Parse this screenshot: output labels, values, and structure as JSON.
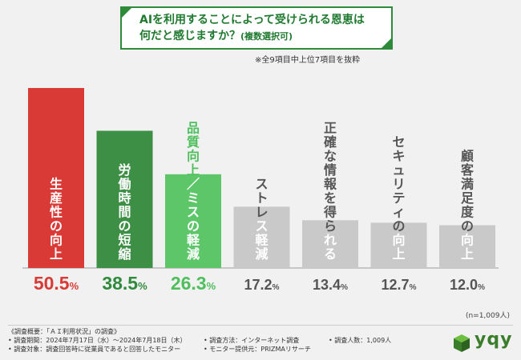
{
  "title": {
    "line1": "AIを利用することによって受けられる恩恵は",
    "line2": "何だと感じますか？",
    "line2_suffix": "(複数選択可)"
  },
  "note": "※全9項目中上位7項目を抜粋",
  "chart_data": {
    "type": "bar",
    "categories": [
      "生産性の向上",
      "労働時間の短縮",
      "品質向上／ミスの軽減",
      "ストレス軽減",
      "正確な情報を得られる",
      "セキュリティの向上",
      "顧客満足度の向上"
    ],
    "values": [
      50.5,
      38.5,
      26.3,
      17.2,
      13.4,
      12.7,
      12.0
    ],
    "value_labels": [
      "50.5%",
      "38.5%",
      "26.3%",
      "17.2%",
      "13.4%",
      "12.7%",
      "12.0%"
    ],
    "unit": "%",
    "ylim": [
      0,
      50.5
    ],
    "colors": [
      "#d93a35",
      "#3c8f45",
      "#5cc669",
      "#c9c9c9",
      "#c9c9c9",
      "#c9c9c9",
      "#c9c9c9"
    ],
    "label_colors": [
      "#d93a35",
      "#2f8a3c",
      "#4fbf5e",
      "#555555",
      "#555555",
      "#555555",
      "#555555"
    ],
    "inside_label_colors": [
      "#ffffff",
      "#ffffff",
      "#ffffff",
      "#ffffff",
      "#ffffff",
      "#ffffff",
      "#ffffff"
    ],
    "sample_note": "(n=1,009人)"
  },
  "footer": {
    "overview": "《調査概要：「ＡＩ利用状況」の調査》",
    "period": "• 調査期間：2024年7月17日（水）～2024年7月18日（木）",
    "method": "• 調査方法：インターネット調査",
    "count": "• 調査人数：1,009人",
    "target": "• 調査対象：調査回答時に従業員であると回答したモニター",
    "provider": "• モニター提供元：PRIZMAリサーチ"
  },
  "brand": {
    "name": "yqy",
    "color": "#3a7d2a"
  }
}
